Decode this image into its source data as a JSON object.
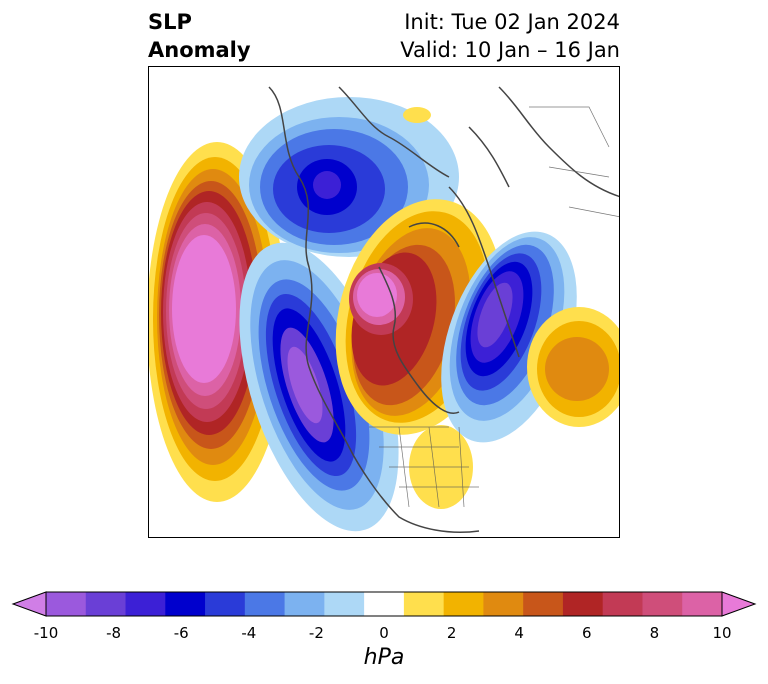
{
  "title": {
    "left_line1": "SLP",
    "left_line2": "Anomaly",
    "right_line1": "Init: Tue 02 Jan 2024",
    "right_line2": "Valid: 10 Jan – 16 Jan"
  },
  "colorbar": {
    "unit": "hPa",
    "ticks": [
      "-10",
      "-8",
      "-6",
      "-4",
      "-2",
      "0",
      "2",
      "4",
      "6",
      "8",
      "10"
    ],
    "colors": [
      "#d07ee6",
      "#9b59dd",
      "#6a3fd6",
      "#3c20d6",
      "#0000cd",
      "#2a3bd8",
      "#4b78e6",
      "#7cb2f0",
      "#add8f6",
      "#ffffff",
      "#ffdf4d",
      "#f2b300",
      "#e08a10",
      "#c8561a",
      "#b02525",
      "#c23a55",
      "#cf4e7a",
      "#dc62a6",
      "#e87ad8"
    ]
  },
  "map": {
    "projection": "polar-stereographic",
    "field": "sea level pressure anomaly"
  }
}
